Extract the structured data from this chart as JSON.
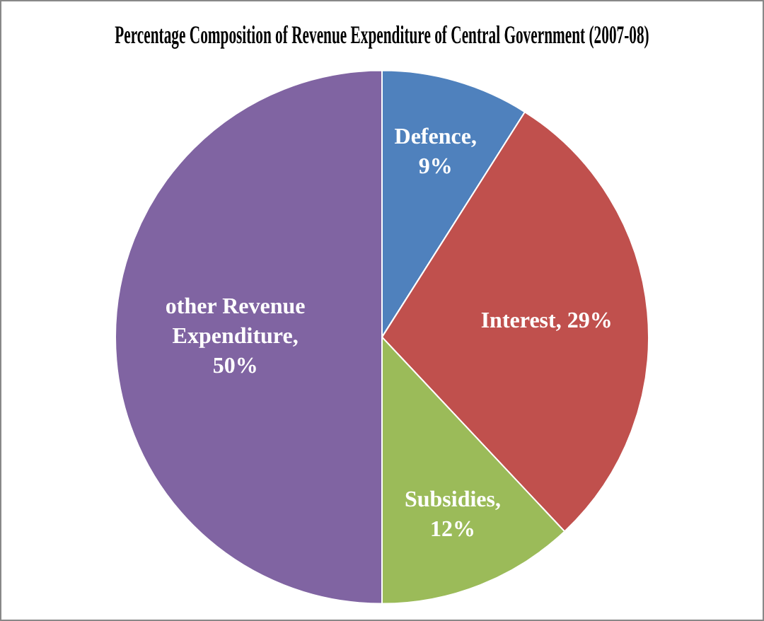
{
  "chart_data": {
    "type": "pie",
    "title": "Percentage Composition of Revenue Expenditure of Central Government (2007-08)",
    "categories": [
      "Defence",
      "Interest",
      "Subsidies",
      "other Revenue Expenditure"
    ],
    "values": [
      9,
      29,
      12,
      50
    ],
    "colors": [
      "#4f81bd",
      "#c0504d",
      "#9bbb59",
      "#8064a2"
    ],
    "value_labels": [
      ", 9%",
      ", 29%",
      ", 12%",
      ", 50%"
    ],
    "legend": false
  }
}
